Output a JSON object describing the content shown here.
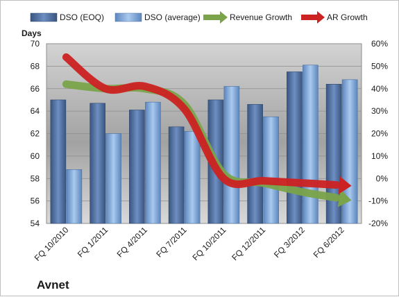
{
  "chart_data": {
    "type": "bar",
    "title": "",
    "company_label": "Avnet",
    "ylabel": "Days",
    "categories": [
      "FQ 10/2010",
      "FQ 1/2011",
      "FQ 4/2011",
      "FQ 7/2011",
      "FQ 10/2011",
      "FQ 12/2011",
      "FQ 3/2012",
      "FQ 6/2012"
    ],
    "ylim": [
      54,
      70
    ],
    "yticks": [
      "54",
      "56",
      "58",
      "60",
      "62",
      "64",
      "66",
      "68",
      "70"
    ],
    "y2lim": [
      -20,
      60
    ],
    "y2ticks": [
      "-20%",
      "-10%",
      "0%",
      "10%",
      "20%",
      "30%",
      "40%",
      "50%",
      "60%"
    ],
    "series": [
      {
        "name": "DSO (EOQ)",
        "kind": "bar",
        "color": "#4f6fa0",
        "values": [
          65.0,
          64.7,
          64.1,
          62.6,
          65.0,
          64.6,
          67.5,
          66.4
        ]
      },
      {
        "name": "DSO (average)",
        "kind": "bar",
        "color": "#8cb4e2",
        "values": [
          58.8,
          62.0,
          64.8,
          62.2,
          66.2,
          63.5,
          68.1,
          66.8
        ]
      },
      {
        "name": "Revenue Growth",
        "kind": "line-arrow",
        "axis": "right",
        "color": "#7aa34a",
        "values": [
          42,
          40,
          40,
          33,
          2,
          -2,
          -6,
          -9
        ]
      },
      {
        "name": "AR Growth",
        "kind": "line-arrow",
        "axis": "right",
        "color": "#cc2222",
        "values": [
          54,
          40,
          41,
          31,
          0,
          -1,
          -2,
          -3
        ]
      }
    ],
    "grid": true,
    "legend_position": "top"
  }
}
